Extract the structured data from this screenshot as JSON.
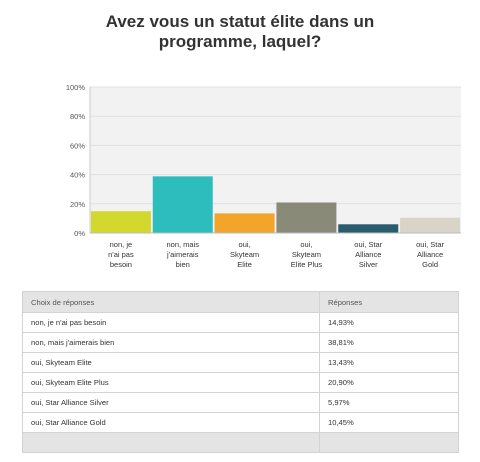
{
  "title_line1": "Avez vous un statut élite dans un",
  "title_line2": "programme, laquel?",
  "chart_data": {
    "type": "bar",
    "title": "Avez vous un statut élite dans un programme, laquel?",
    "categories": [
      [
        "non, je",
        "n'ai pas",
        "besoin"
      ],
      [
        "non, mais",
        "j'aimerais",
        "bien"
      ],
      [
        "oui,",
        "Skyteam",
        "Elite"
      ],
      [
        "oui,",
        "Skyteam",
        "Elite Plus"
      ],
      [
        "oui, Star",
        "Alliance",
        "Silver"
      ],
      [
        "oui, Star",
        "Alliance",
        "Gold"
      ]
    ],
    "values": [
      14.93,
      38.81,
      13.43,
      20.9,
      5.97,
      10.45
    ],
    "colors": [
      "#d3d82e",
      "#2ebdbd",
      "#f2a52a",
      "#8a8a79",
      "#2a5c6e",
      "#d8d5c8"
    ],
    "yticks": [
      "0%",
      "20%",
      "40%",
      "60%",
      "80%",
      "100%"
    ],
    "ylim": [
      0,
      100
    ],
    "grid": true
  },
  "table": {
    "header": {
      "choice": "Choix de réponses",
      "response": "Réponses"
    },
    "rows": [
      {
        "label": "non, je n'ai pas besoin",
        "value": "14,93%"
      },
      {
        "label": "non, mais j'aimerais bien",
        "value": "38,81%"
      },
      {
        "label": "oui, Skyteam Elite",
        "value": "13,43%"
      },
      {
        "label": "oui, Skyteam Elite Plus",
        "value": "20,90%"
      },
      {
        "label": "oui, Star Alliance Silver",
        "value": "5,97%"
      },
      {
        "label": "oui, Star Alliance Gold",
        "value": "10,45%"
      }
    ]
  }
}
